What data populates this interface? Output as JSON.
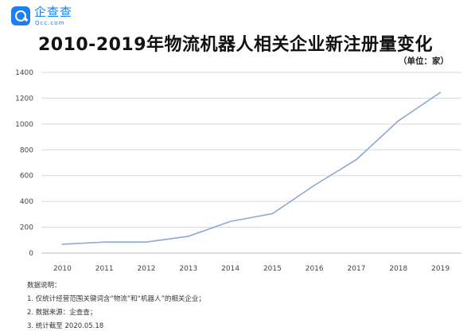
{
  "logo": {
    "name": "企查查",
    "domain": "Qcc.com"
  },
  "chart_data": {
    "type": "line",
    "title": "2010-2019年物流机器人相关企业新注册量变化",
    "unit_label": "（单位：家）",
    "categories": [
      "2010",
      "2011",
      "2012",
      "2013",
      "2014",
      "2015",
      "2016",
      "2017",
      "2018",
      "2019"
    ],
    "series": [
      {
        "values": [
          68,
          85,
          85,
          130,
          245,
          305,
          525,
          725,
          1025,
          1245
        ]
      }
    ],
    "ylim": [
      0,
      1400
    ],
    "yticks": [
      0,
      200,
      400,
      600,
      800,
      1000,
      1200,
      1400
    ],
    "grid": true,
    "line_color": "#8ea9cf"
  },
  "notes": {
    "heading": "数据说明：",
    "items": [
      "1. 仅统计经营范围关键词含“物流”和“机器人”的相关企业；",
      "2. 数据来源：企查查；",
      "3. 统计截至 2020.05.18"
    ]
  }
}
